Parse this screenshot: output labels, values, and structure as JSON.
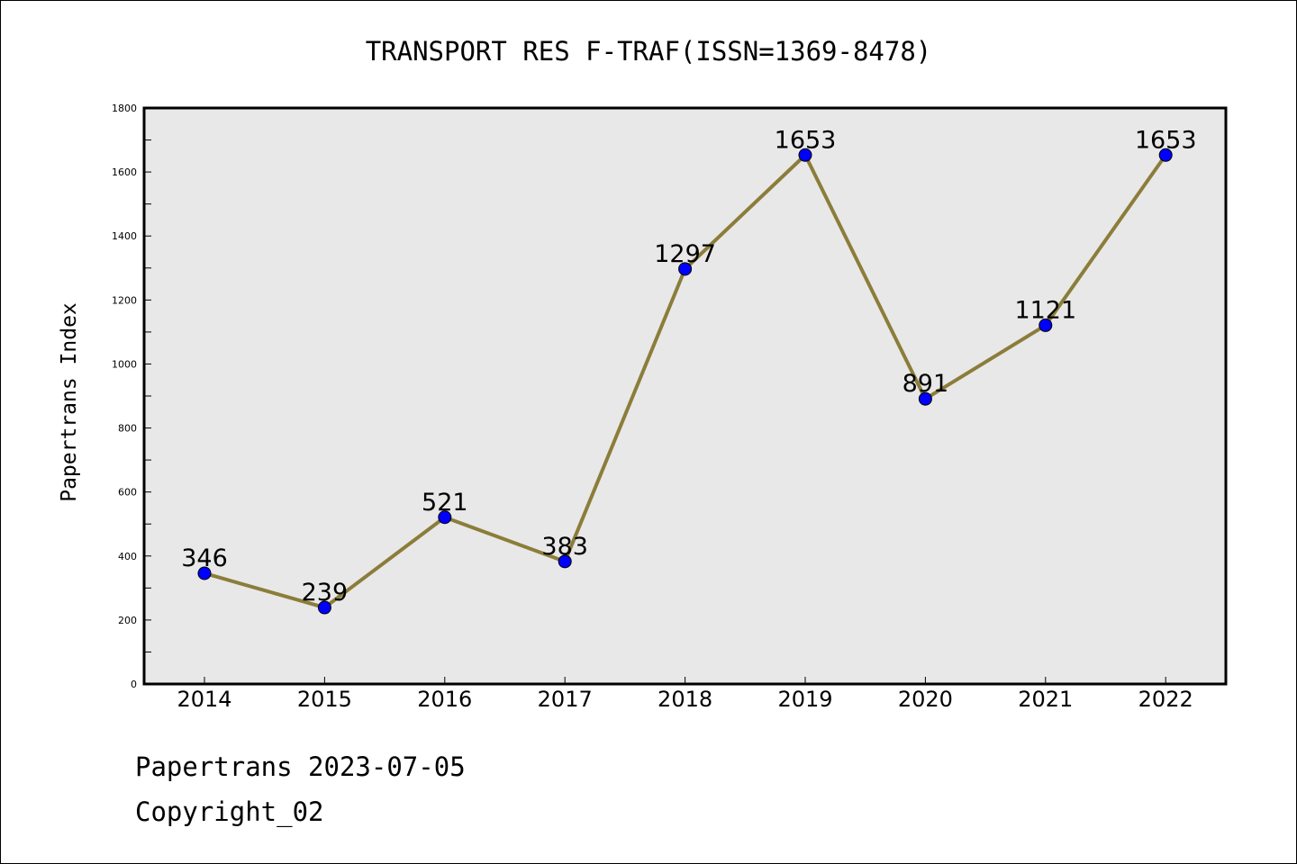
{
  "chart_data": {
    "type": "line",
    "title": "TRANSPORT RES F-TRAF(ISSN=1369-8478)",
    "xlabel": "",
    "ylabel": "Papertrans Index",
    "categories": [
      "2014",
      "2015",
      "2016",
      "2017",
      "2018",
      "2019",
      "2020",
      "2021",
      "2022"
    ],
    "values": [
      346,
      239,
      521,
      383,
      1297,
      1653,
      891,
      1121,
      1653
    ],
    "ylim": [
      0,
      1800
    ],
    "yticks": [
      0,
      200,
      400,
      600,
      800,
      1000,
      1200,
      1400,
      1600,
      1800
    ],
    "grid": false,
    "legend": "none",
    "line_color": "#8b7d3a",
    "marker_color": "#0000ff",
    "plot_background": "#e8e8e8"
  },
  "footer": {
    "date_line": "Papertrans 2023-07-05",
    "copyright_line": "Copyright_02"
  }
}
